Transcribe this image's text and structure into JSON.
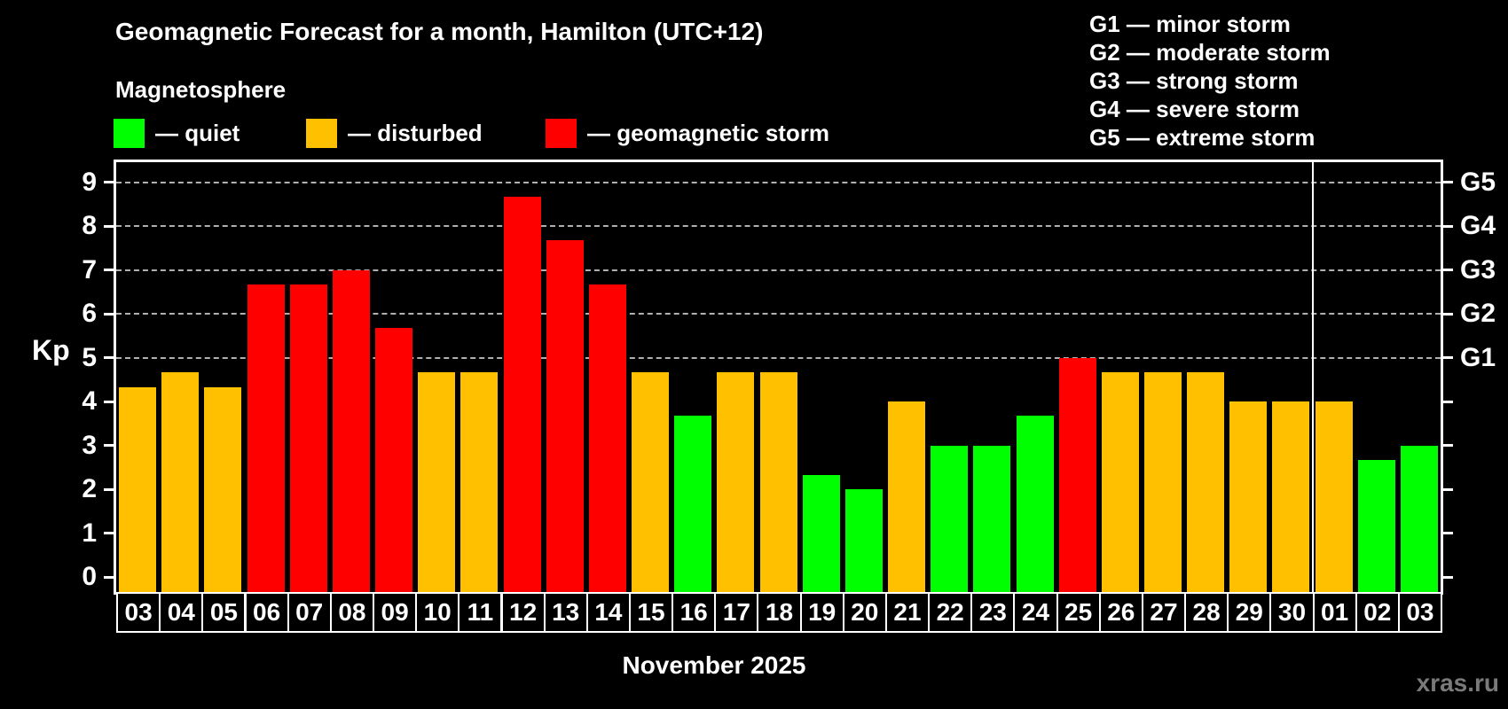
{
  "header": {
    "title": "Geomagnetic Forecast for a month, Hamilton (UTC+12)",
    "subtitle": "Magnetosphere"
  },
  "legend": {
    "items": [
      {
        "key": "quiet",
        "label": "— quiet"
      },
      {
        "key": "disturbed",
        "label": "— disturbed"
      },
      {
        "key": "storm",
        "label": "— geomagnetic storm"
      }
    ]
  },
  "g_legend": {
    "lines": [
      "G1 — minor storm",
      "G2 — moderate storm",
      "G3 — strong storm",
      "G4 — severe storm",
      "G5 — extreme storm"
    ]
  },
  "colors": {
    "quiet": "#00ff00",
    "disturbed": "#ffc000",
    "storm": "#ff0000",
    "frame": "#ffffff",
    "grid": "#b0b0b0",
    "watermark": "#7a7a7a"
  },
  "footer": {
    "month_label": "November 2025",
    "watermark": "xras.ru"
  },
  "chart_data": {
    "type": "bar",
    "title": "Geomagnetic Forecast for a month, Hamilton (UTC+12)",
    "subtitle": "Magnetosphere",
    "ylabel": "Kp",
    "xlabel": "November 2025",
    "ylim": [
      -0.35,
      9.45
    ],
    "y_ticks": [
      0,
      1,
      2,
      3,
      4,
      5,
      6,
      7,
      8,
      9
    ],
    "grid": "horizontal dashed lines only at G-storm levels (Kp 5-9)",
    "legend_position": "top",
    "g_levels": [
      {
        "label": "G1",
        "value": 5
      },
      {
        "label": "G2",
        "value": 6
      },
      {
        "label": "G3",
        "value": 7
      },
      {
        "label": "G4",
        "value": 8
      },
      {
        "label": "G5",
        "value": 9
      }
    ],
    "month_separator_after_index": 27,
    "bars": [
      {
        "day": "03",
        "kp": 4.33,
        "level": "disturbed"
      },
      {
        "day": "04",
        "kp": 4.67,
        "level": "disturbed"
      },
      {
        "day": "05",
        "kp": 4.33,
        "level": "disturbed"
      },
      {
        "day": "06",
        "kp": 6.67,
        "level": "storm"
      },
      {
        "day": "07",
        "kp": 6.67,
        "level": "storm"
      },
      {
        "day": "08",
        "kp": 7.0,
        "level": "storm"
      },
      {
        "day": "09",
        "kp": 5.67,
        "level": "storm"
      },
      {
        "day": "10",
        "kp": 4.67,
        "level": "disturbed"
      },
      {
        "day": "11",
        "kp": 4.67,
        "level": "disturbed"
      },
      {
        "day": "12",
        "kp": 8.67,
        "level": "storm"
      },
      {
        "day": "13",
        "kp": 7.67,
        "level": "storm"
      },
      {
        "day": "14",
        "kp": 6.67,
        "level": "storm"
      },
      {
        "day": "15",
        "kp": 4.67,
        "level": "disturbed"
      },
      {
        "day": "16",
        "kp": 3.67,
        "level": "quiet"
      },
      {
        "day": "17",
        "kp": 4.67,
        "level": "disturbed"
      },
      {
        "day": "18",
        "kp": 4.67,
        "level": "disturbed"
      },
      {
        "day": "19",
        "kp": 2.33,
        "level": "quiet"
      },
      {
        "day": "20",
        "kp": 2.0,
        "level": "quiet"
      },
      {
        "day": "21",
        "kp": 4.0,
        "level": "disturbed"
      },
      {
        "day": "22",
        "kp": 3.0,
        "level": "quiet"
      },
      {
        "day": "23",
        "kp": 3.0,
        "level": "quiet"
      },
      {
        "day": "24",
        "kp": 3.67,
        "level": "quiet"
      },
      {
        "day": "25",
        "kp": 5.0,
        "level": "storm"
      },
      {
        "day": "26",
        "kp": 4.67,
        "level": "disturbed"
      },
      {
        "day": "27",
        "kp": 4.67,
        "level": "disturbed"
      },
      {
        "day": "28",
        "kp": 4.67,
        "level": "disturbed"
      },
      {
        "day": "29",
        "kp": 4.0,
        "level": "disturbed"
      },
      {
        "day": "30",
        "kp": 4.0,
        "level": "disturbed"
      },
      {
        "day": "01",
        "kp": 4.0,
        "level": "disturbed"
      },
      {
        "day": "02",
        "kp": 2.67,
        "level": "quiet"
      },
      {
        "day": "03",
        "kp": 3.0,
        "level": "quiet"
      }
    ]
  }
}
